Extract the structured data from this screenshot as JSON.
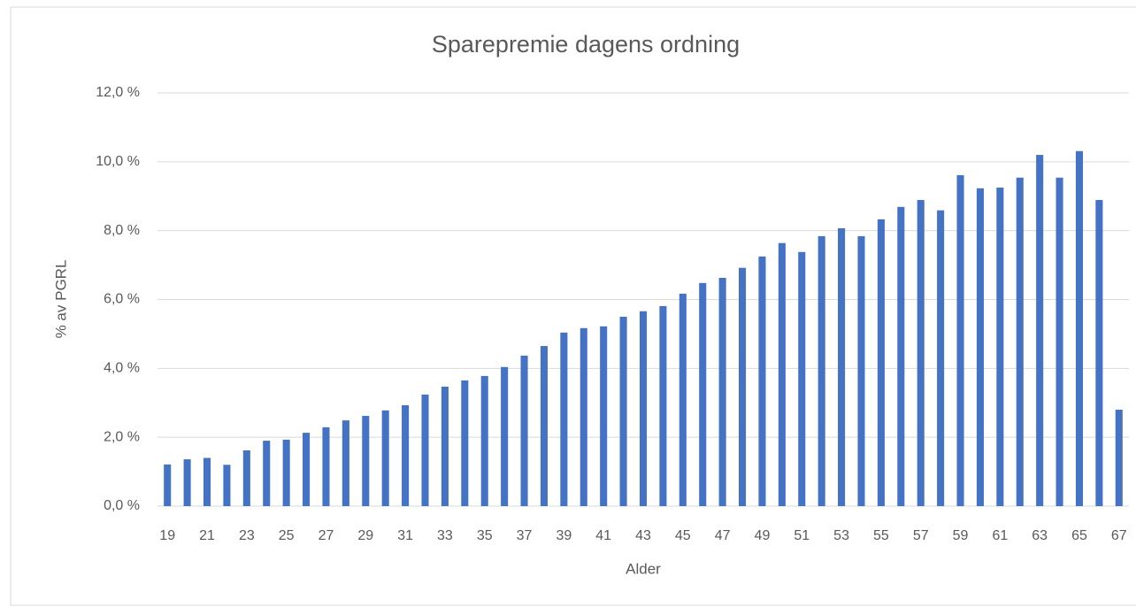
{
  "chart_data": {
    "type": "bar",
    "title": "Sparepremie dagens ordning",
    "x_label": "Alder",
    "y_label": "% av PGRL",
    "categories": [
      19,
      null,
      21,
      null,
      23,
      null,
      25,
      null,
      27,
      null,
      29,
      null,
      31,
      null,
      33,
      null,
      35,
      null,
      37,
      null,
      39,
      null,
      41,
      null,
      43,
      null,
      45,
      null,
      47,
      null,
      49,
      null,
      51,
      null,
      53,
      null,
      55,
      null,
      57,
      null,
      59,
      null,
      61,
      null,
      63,
      null,
      65,
      null,
      67
    ],
    "values": [
      1.21,
      1.36,
      1.4,
      1.2,
      1.62,
      1.9,
      1.93,
      2.13,
      2.29,
      2.49,
      2.62,
      2.78,
      2.93,
      3.24,
      3.47,
      3.65,
      3.78,
      4.04,
      4.37,
      4.65,
      5.04,
      5.17,
      5.22,
      5.5,
      5.66,
      5.81,
      6.17,
      6.48,
      6.63,
      6.92,
      7.25,
      7.64,
      7.38,
      7.84,
      8.07,
      7.84,
      8.33,
      8.69,
      8.89,
      8.59,
      9.61,
      9.23,
      9.25,
      9.54,
      10.2,
      9.54,
      10.31,
      8.89,
      2.8
    ],
    "color": "#4472c4",
    "ylim": [
      0,
      12
    ],
    "yticks": [
      {
        "value": 0,
        "label": "0,0 %"
      },
      {
        "value": 2,
        "label": "2,0 %"
      },
      {
        "value": 4,
        "label": "4,0 %"
      },
      {
        "value": 6,
        "label": "6,0 %"
      },
      {
        "value": 8,
        "label": "8,0 %"
      },
      {
        "value": 10,
        "label": "10,0 %"
      },
      {
        "value": 12,
        "label": "12,0 %"
      }
    ],
    "grid": true
  }
}
